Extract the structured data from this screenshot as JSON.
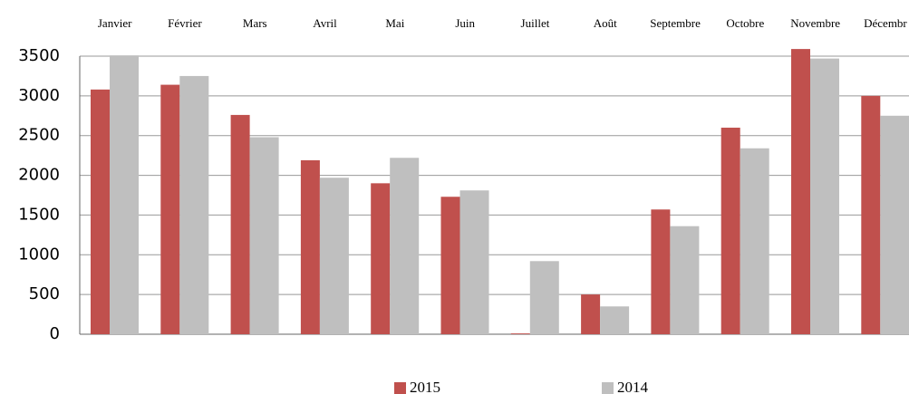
{
  "chart_data": {
    "type": "bar",
    "categories": [
      "Janvier",
      "Février",
      "Mars",
      "Avril",
      "Mai",
      "Juin",
      "Juillet",
      "Août",
      "Septembre",
      "Octobre",
      "Novembre",
      "Décembr"
    ],
    "series": [
      {
        "name": "2015",
        "color": "#c0504d",
        "values": [
          3080,
          3140,
          2760,
          2190,
          1900,
          1730,
          10,
          500,
          1570,
          2600,
          3590,
          3000
        ]
      },
      {
        "name": "2014",
        "color": "#bfbfbf",
        "values": [
          3510,
          3250,
          2480,
          1970,
          2220,
          1810,
          920,
          350,
          1360,
          2340,
          3470,
          2750
        ]
      }
    ],
    "ylim": [
      0,
      3500
    ],
    "yticks": [
      0,
      500,
      1000,
      1500,
      2000,
      2500,
      3000,
      3500
    ],
    "grid": true
  }
}
